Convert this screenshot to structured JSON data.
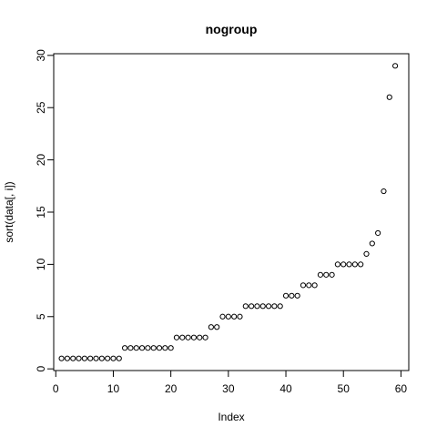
{
  "chart_data": {
    "type": "scatter",
    "title": "nogroup",
    "xlabel": "Index",
    "ylabel": "sort(data[, i])",
    "xlim": [
      -0.36,
      61.36
    ],
    "ylim": [
      -0.16,
      30.16
    ],
    "xticks": [
      0,
      10,
      20,
      30,
      40,
      50,
      60
    ],
    "yticks": [
      0,
      5,
      10,
      15,
      20,
      25,
      30
    ],
    "grid": false,
    "legend": "none",
    "marker": "open-circle",
    "colors": {
      "points": "#000000",
      "axes": "#000000",
      "background": "#ffffff"
    },
    "x": [
      1,
      2,
      3,
      4,
      5,
      6,
      7,
      8,
      9,
      10,
      11,
      12,
      13,
      14,
      15,
      16,
      17,
      18,
      19,
      20,
      21,
      22,
      23,
      24,
      25,
      26,
      27,
      28,
      29,
      30,
      31,
      32,
      33,
      34,
      35,
      36,
      37,
      38,
      39,
      40,
      41,
      42,
      43,
      44,
      45,
      46,
      47,
      48,
      49,
      50,
      51,
      52,
      53,
      54,
      55,
      56,
      57,
      58,
      59
    ],
    "y": [
      1,
      1,
      1,
      1,
      1,
      1,
      1,
      1,
      1,
      1,
      1,
      2,
      2,
      2,
      2,
      2,
      2,
      2,
      2,
      2,
      3,
      3,
      3,
      3,
      3,
      3,
      4,
      4,
      5,
      5,
      5,
      5,
      6,
      6,
      6,
      6,
      6,
      6,
      6,
      7,
      7,
      7,
      8,
      8,
      8,
      9,
      9,
      9,
      10,
      10,
      10,
      10,
      10,
      11,
      12,
      13,
      17,
      26,
      29
    ]
  }
}
